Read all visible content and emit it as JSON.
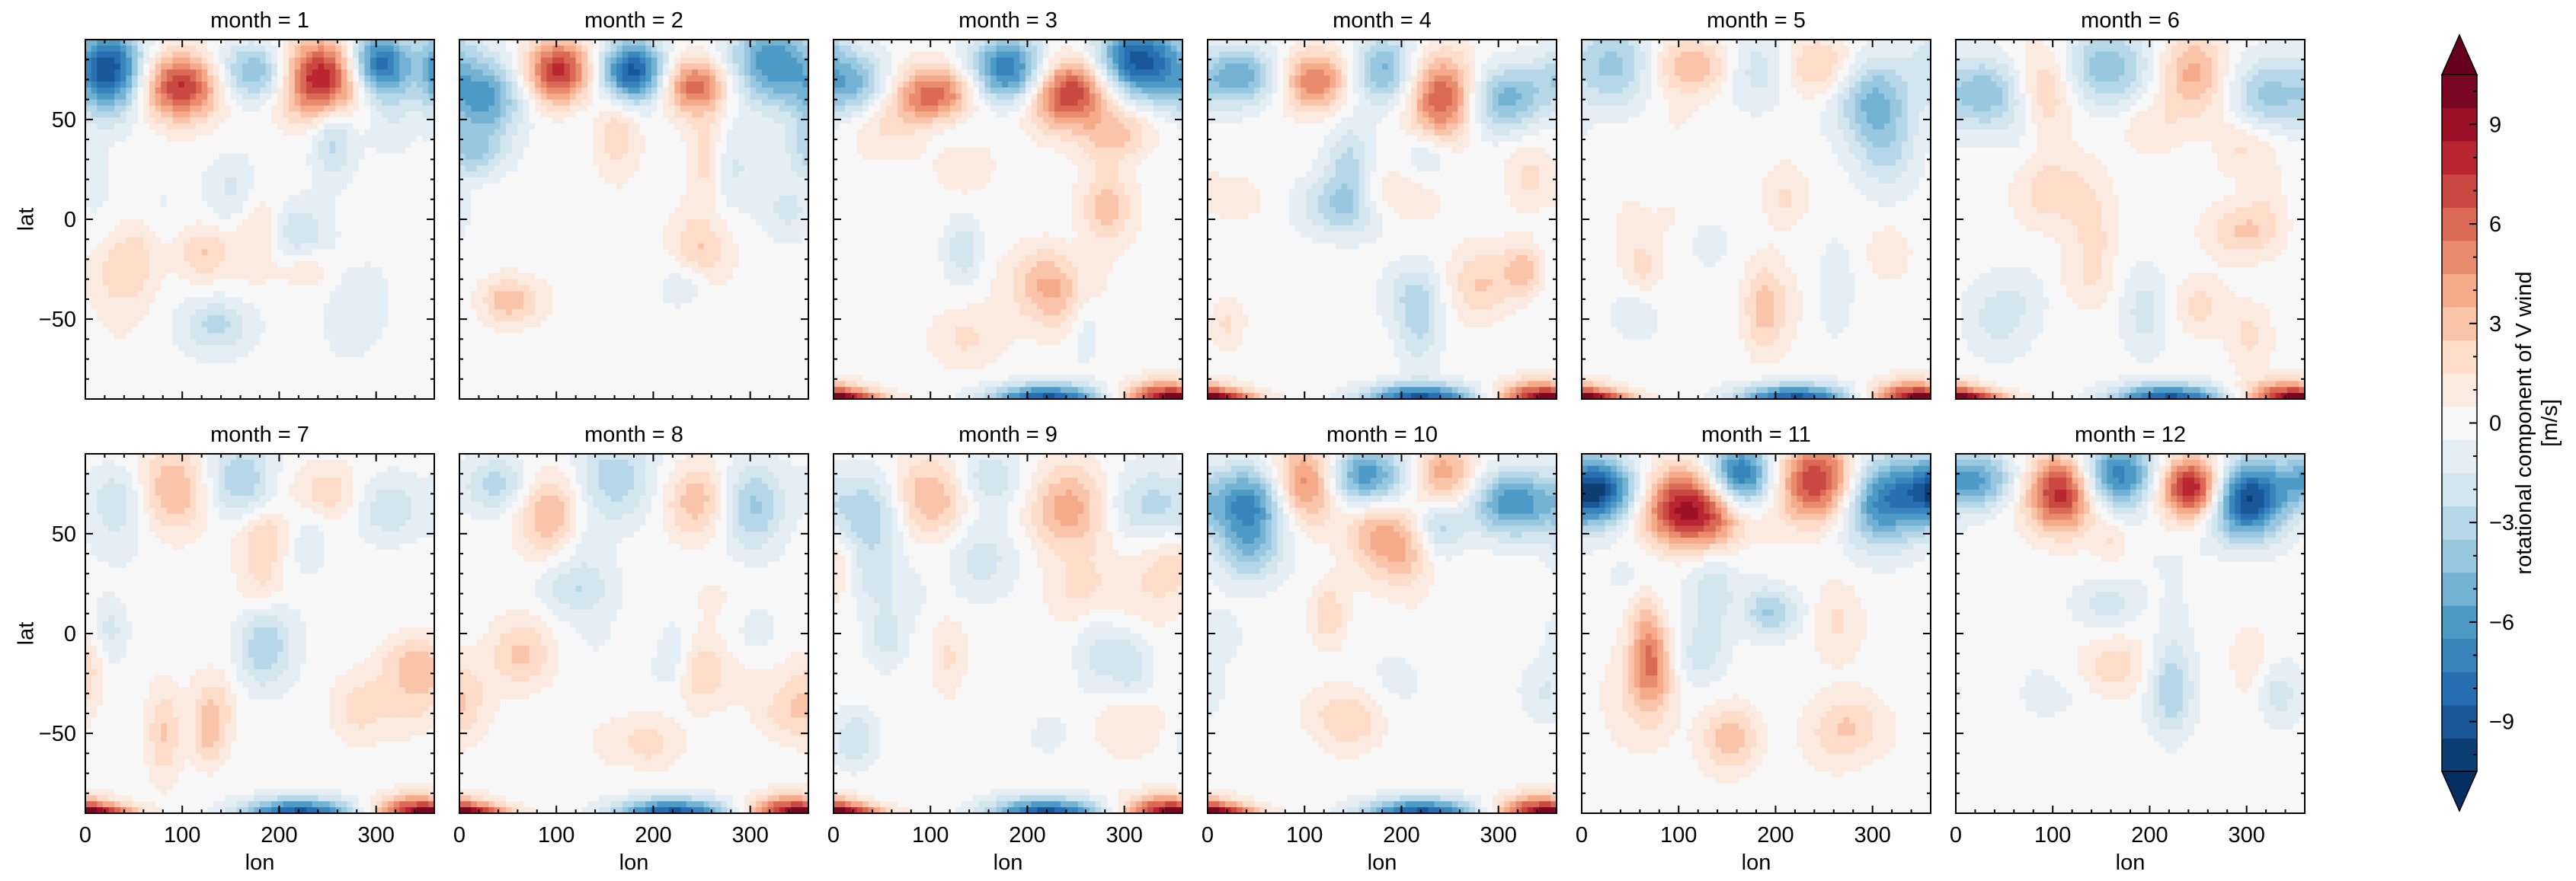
{
  "chart_data": {
    "type": "heatmap",
    "layout": "facet grid 2 rows x 6 columns (contourf)",
    "facet_variable": "month",
    "facet_title_template": "month = {m}",
    "facets": [
      {
        "month": 1,
        "title": "month = 1"
      },
      {
        "month": 2,
        "title": "month = 2"
      },
      {
        "month": 3,
        "title": "month = 3"
      },
      {
        "month": 4,
        "title": "month = 4"
      },
      {
        "month": 5,
        "title": "month = 5"
      },
      {
        "month": 6,
        "title": "month = 6"
      },
      {
        "month": 7,
        "title": "month = 7"
      },
      {
        "month": 8,
        "title": "month = 8"
      },
      {
        "month": 9,
        "title": "month = 9"
      },
      {
        "month": 10,
        "title": "month = 10"
      },
      {
        "month": 11,
        "title": "month = 11"
      },
      {
        "month": 12,
        "title": "month = 12"
      }
    ],
    "xlabel": "lon",
    "ylabel": "lat",
    "xlim": [
      0,
      360
    ],
    "ylim": [
      -90,
      90
    ],
    "xticks": [
      0,
      100,
      200,
      300
    ],
    "yticks": [
      -50,
      0,
      50
    ],
    "colorbar": {
      "label_line1": "rotational component of V wind",
      "label_line2": "[m/s]",
      "range": [
        -10.5,
        10.5
      ],
      "level_step": 1,
      "extend": "both",
      "colormap": "RdBu_r",
      "ticks": [
        -9,
        -6,
        -3,
        0,
        3,
        6,
        9
      ],
      "tick_labels": [
        "−9",
        "−6",
        "−3",
        "0",
        "3",
        "6",
        "9"
      ]
    },
    "field_description": "Each panel shows lon-lat contours of the monthly rotational V wind; strongest anomalies (about ±10 m/s) occur at high northern latitudes in winter months and along the southern polar edge."
  },
  "colors": {
    "RdBu_r": [
      "#053061",
      "#2166ac",
      "#4393c3",
      "#92c5de",
      "#d1e5f0",
      "#f7f7f7",
      "#fddbc7",
      "#f4a582",
      "#d6604d",
      "#b2182b",
      "#67001f"
    ]
  }
}
